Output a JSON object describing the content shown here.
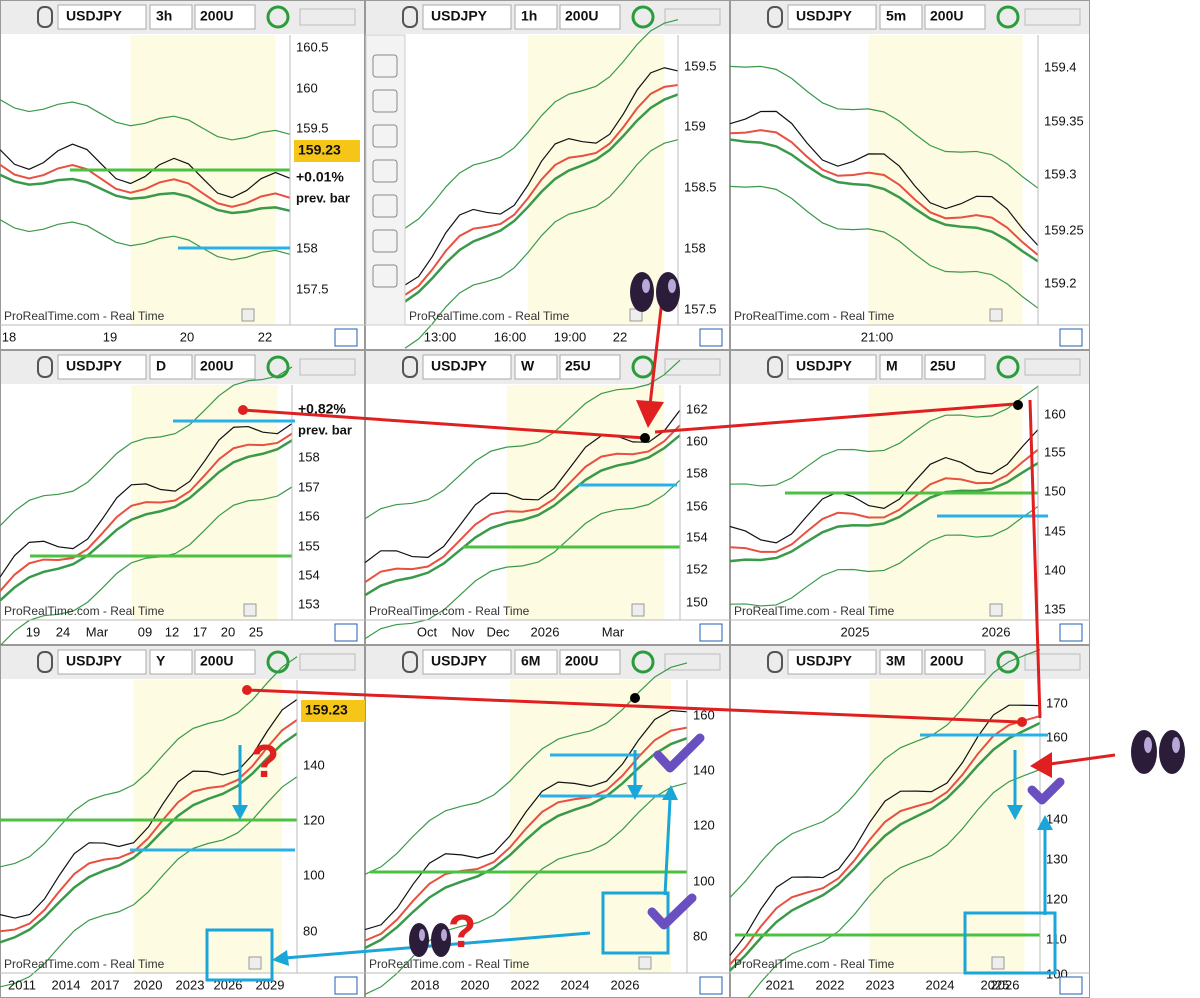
{
  "watermark": "ProRealTime.com - Real Time",
  "annotations": {
    "question": "?"
  },
  "panels": [
    {
      "symbol": "USDJPY",
      "timeframe": "3h",
      "units": "200U",
      "yticks": [
        "160.5",
        "160",
        "159.5",
        "158",
        "157.5"
      ],
      "xticks": [
        "18",
        "19",
        "20",
        "22"
      ],
      "price": "159.23",
      "change": "+0.01%",
      "prev": "prev. bar"
    },
    {
      "symbol": "USDJPY",
      "timeframe": "1h",
      "units": "200U",
      "yticks": [
        "159.5",
        "159",
        "158.5",
        "158",
        "157.5"
      ],
      "xticks": [
        "13:00",
        "16:00",
        "19:00",
        "22"
      ]
    },
    {
      "symbol": "USDJPY",
      "timeframe": "5m",
      "units": "200U",
      "yticks": [
        "159.4",
        "159.35",
        "159.3",
        "159.25",
        "159.2"
      ],
      "xticks": [
        "21:00"
      ]
    },
    {
      "symbol": "USDJPY",
      "timeframe": "D",
      "units": "200U",
      "yticks": [
        "158",
        "157",
        "156",
        "155",
        "154",
        "153"
      ],
      "xticks": [
        "19",
        "24",
        "Mar",
        "09",
        "12",
        "17",
        "20",
        "25"
      ],
      "change": "+0.82%",
      "prev": "prev. bar"
    },
    {
      "symbol": "USDJPY",
      "timeframe": "W",
      "units": "25U",
      "yticks": [
        "162",
        "160",
        "158",
        "156",
        "154",
        "152",
        "150"
      ],
      "xticks": [
        "Oct",
        "Nov",
        "Dec",
        "2026",
        "Mar"
      ]
    },
    {
      "symbol": "USDJPY",
      "timeframe": "M",
      "units": "25U",
      "yticks": [
        "160",
        "155",
        "150",
        "145",
        "140",
        "135"
      ],
      "xticks": [
        "2025",
        "2026"
      ]
    },
    {
      "symbol": "USDJPY",
      "timeframe": "Y",
      "units": "200U",
      "yticks": [
        "140",
        "120",
        "100",
        "80"
      ],
      "xticks": [
        "2011",
        "2014",
        "2017",
        "2020",
        "2023",
        "2026",
        "2029"
      ],
      "price": "159.23"
    },
    {
      "symbol": "USDJPY",
      "timeframe": "6M",
      "units": "200U",
      "yticks": [
        "160",
        "140",
        "120",
        "100",
        "80"
      ],
      "xticks": [
        "2018",
        "2020",
        "2022",
        "2024",
        "2026"
      ]
    },
    {
      "symbol": "USDJPY",
      "timeframe": "3M",
      "units": "200U",
      "yticks": [
        "170",
        "160",
        "140",
        "130",
        "120",
        "110",
        "100"
      ],
      "xticks": [
        "2021",
        "2022",
        "2023",
        "2024",
        "2025",
        "2026"
      ]
    }
  ]
}
